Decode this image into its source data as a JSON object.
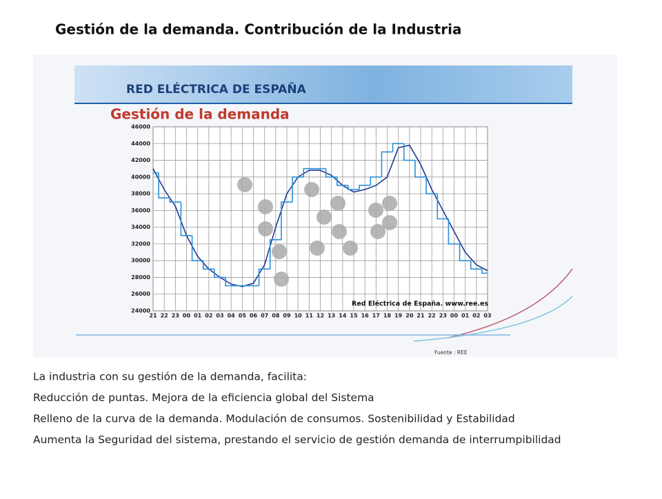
{
  "title": "Gestión de la demanda. Contribución de la Industria",
  "figure": {
    "brand": "RED ELÉCTRICA DE ESPAÑA",
    "heading": "Gestión de la demanda",
    "credit": "Red Eléctrica de España.   www.ree.es",
    "source": "Fuente : REE",
    "chart": {
      "type": "line",
      "categories": [
        "21",
        "22",
        "23",
        "00",
        "01",
        "02",
        "03",
        "04",
        "05",
        "06",
        "07",
        "08",
        "09",
        "10",
        "11",
        "12",
        "13",
        "14",
        "15",
        "16",
        "17",
        "18",
        "19",
        "20",
        "21",
        "22",
        "23",
        "00",
        "01",
        "02",
        "03"
      ],
      "series": [
        {
          "color": "#1f3a93",
          "values": [
            41000,
            38500,
            36500,
            33000,
            30500,
            29000,
            28000,
            27200,
            26900,
            27300,
            29500,
            34000,
            38000,
            40000,
            40800,
            40800,
            40200,
            39000,
            38200,
            38500,
            39000,
            40000,
            43500,
            43800,
            41500,
            38500,
            36000,
            33500,
            31000,
            29500,
            28800
          ]
        },
        {
          "color": "#2a8fd8",
          "values": [
            40500,
            37500,
            37000,
            33000,
            30000,
            29000,
            28000,
            27000,
            27000,
            27000,
            29000,
            32500,
            37000,
            40000,
            41000,
            41000,
            40000,
            39000,
            38500,
            39000,
            40000,
            43000,
            44000,
            42000,
            40000,
            38000,
            35000,
            32000,
            30000,
            29000,
            28500
          ]
        }
      ],
      "ylim": [
        24000,
        46000
      ],
      "yticks": [
        24000,
        26000,
        28000,
        30000,
        32000,
        34000,
        36000,
        38000,
        40000,
        42000,
        44000,
        46000
      ],
      "grid": true
    }
  },
  "bullets": [
    "La  industria con su gestión de la demanda, facilita:",
    "Reducción de puntas. Mejora de la eficiencia global del Sistema",
    "Relleno de la curva de la demanda. Modulación de consumos. Sostenibilidad y Estabilidad",
    "Aumenta la Seguridad del sistema, prestando el servicio de gestión demanda de interrumpibilidad"
  ]
}
